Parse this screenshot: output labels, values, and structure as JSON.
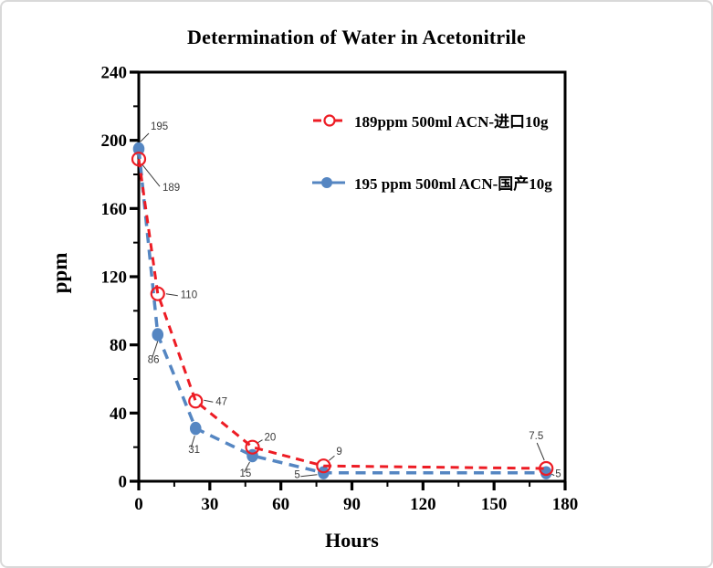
{
  "frame": {
    "background": "#ffffff",
    "border_color": "#d9d9d9",
    "axis_color": "#000000",
    "data_label_color": "#3a3a3a"
  },
  "chart_data": {
    "type": "line",
    "title": "Determination of Water in Acetonitrile",
    "xlabel": "Hours",
    "ylabel": "ppm",
    "xlim": [
      0,
      180
    ],
    "ylim": [
      0,
      240
    ],
    "x_major_ticks": [
      0,
      30,
      60,
      90,
      120,
      150,
      180
    ],
    "x_minor_step": 15,
    "y_major_ticks": [
      0,
      40,
      80,
      120,
      160,
      200,
      240
    ],
    "y_minor_step": 20,
    "grid": false,
    "legend_position": "inside-upper-right",
    "series": [
      {
        "name": "189ppm  500ml ACN-进口10g",
        "color": "#ED1C24",
        "line_style": "dashed",
        "line_width": 3,
        "marker": "open-circle",
        "x": [
          0,
          8,
          24,
          48,
          78,
          172
        ],
        "y": [
          189,
          110,
          47,
          20,
          9,
          7.5
        ],
        "point_labels": [
          {
            "text": "189",
            "dx": 26,
            "dy": 35,
            "leader": [
              [
                3,
                5
              ],
              [
                23,
                30
              ]
            ]
          },
          {
            "text": "110",
            "dx": 25,
            "dy": 5,
            "leader": [
              [
                9,
                0
              ],
              [
                22,
                2
              ]
            ]
          },
          {
            "text": "47",
            "dx": 22,
            "dy": 4,
            "leader": [
              [
                9,
                -1
              ],
              [
                19,
                1
              ]
            ]
          },
          {
            "text": "20",
            "dx": 13,
            "dy": -7,
            "leader": [
              [
                6,
                -5
              ],
              [
                11,
                -8
              ]
            ]
          },
          {
            "text": "9",
            "dx": 14,
            "dy": -12,
            "leader": [
              [
                6,
                -6
              ],
              [
                12,
                -11
              ]
            ]
          },
          {
            "text": "7.5",
            "dx": -19,
            "dy": -32,
            "leader": [
              [
                -2,
                -9
              ],
              [
                -10,
                -28
              ]
            ]
          }
        ]
      },
      {
        "name": "195 ppm 500ml ACN-国产10g",
        "color": "#5586C2",
        "line_style": "dashed",
        "line_width": 3.5,
        "marker": "filled-circle",
        "x": [
          0,
          8,
          24,
          48,
          78,
          172
        ],
        "y": [
          195,
          86,
          31,
          15,
          5,
          5
        ],
        "point_labels": [
          {
            "text": "195",
            "dx": 13,
            "dy": -21,
            "leader": [
              [
                2,
                -8
              ],
              [
                11,
                -17
              ]
            ]
          },
          {
            "text": "86",
            "dx": -11,
            "dy": 31,
            "leader": [
              [
                0,
                7
              ],
              [
                -6,
                25
              ]
            ]
          },
          {
            "text": "31",
            "dx": -8,
            "dy": 27,
            "leader": [
              [
                -1,
                8
              ],
              [
                -5,
                21
              ]
            ]
          },
          {
            "text": "15",
            "dx": -14,
            "dy": 23,
            "leader": [
              [
                -3,
                7
              ],
              [
                -9,
                18
              ]
            ]
          },
          {
            "text": "5",
            "dx": -32,
            "dy": 6,
            "leader": [
              [
                -7,
                2
              ],
              [
                -25,
                4
              ]
            ]
          },
          {
            "text": "5",
            "dx": 10,
            "dy": 5,
            "leader": [
              [
                5,
                1
              ],
              [
                9,
                3
              ]
            ]
          }
        ]
      }
    ]
  }
}
